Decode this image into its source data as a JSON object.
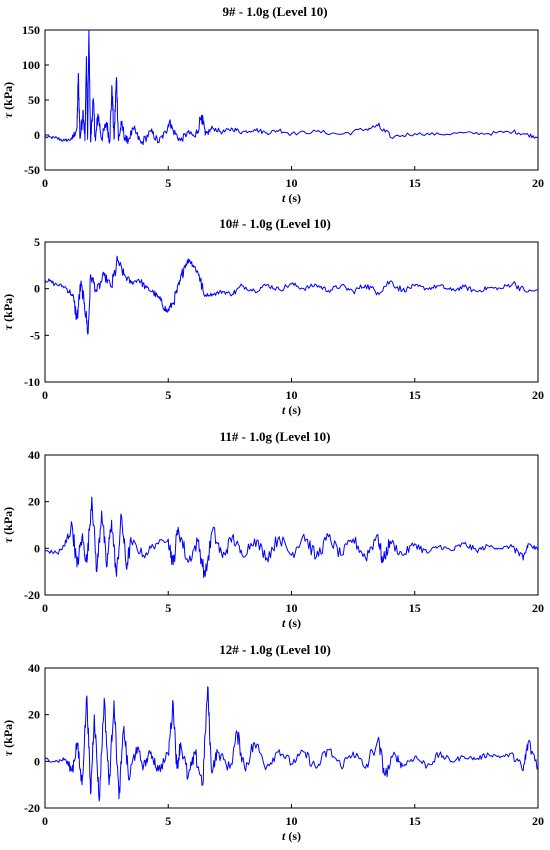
{
  "colors": {
    "series": "#0000ff",
    "axis": "#000000",
    "background": "#ffffff"
  },
  "axis_labels": {
    "y_symbol": "τ",
    "y_unit": " (kPa)",
    "x_symbol": "t",
    "x_unit": " (s)"
  },
  "chart_data": [
    {
      "type": "line",
      "title": "9# - 1.0g (Level 10)",
      "xlabel": "t (s)",
      "ylabel": "τ (kPa)",
      "xlim": [
        0,
        20
      ],
      "ylim": [
        -50,
        150
      ],
      "xticks": [
        0,
        5,
        10,
        15,
        20
      ],
      "yticks": [
        -50,
        0,
        50,
        100,
        150
      ],
      "grid": false,
      "series": [
        {
          "points": [
            [
              0,
              -3
            ],
            [
              0.4,
              -4
            ],
            [
              0.8,
              -8
            ],
            [
              1.1,
              -6
            ],
            [
              1.3,
              10
            ],
            [
              1.35,
              88
            ],
            [
              1.42,
              -5
            ],
            [
              1.55,
              35
            ],
            [
              1.62,
              -8
            ],
            [
              1.68,
              112
            ],
            [
              1.73,
              -6
            ],
            [
              1.78,
              150
            ],
            [
              1.85,
              -10
            ],
            [
              1.95,
              50
            ],
            [
              2.05,
              -8
            ],
            [
              2.15,
              30
            ],
            [
              2.3,
              -5
            ],
            [
              2.5,
              18
            ],
            [
              2.62,
              -8
            ],
            [
              2.72,
              68
            ],
            [
              2.8,
              -6
            ],
            [
              2.9,
              82
            ],
            [
              2.98,
              -8
            ],
            [
              3.1,
              15
            ],
            [
              3.3,
              -10
            ],
            [
              3.6,
              8
            ],
            [
              3.9,
              -12
            ],
            [
              4.3,
              5
            ],
            [
              4.6,
              -10
            ],
            [
              4.9,
              4
            ],
            [
              5.05,
              20
            ],
            [
              5.2,
              6
            ],
            [
              5.5,
              -8
            ],
            [
              5.8,
              4
            ],
            [
              6.1,
              -3
            ],
            [
              6.35,
              28
            ],
            [
              6.5,
              0
            ],
            [
              6.8,
              10
            ],
            [
              7.2,
              4
            ],
            [
              7.6,
              9
            ],
            [
              8,
              4
            ],
            [
              8.5,
              8
            ],
            [
              9,
              3
            ],
            [
              9.5,
              7
            ],
            [
              10,
              2
            ],
            [
              11,
              5
            ],
            [
              12,
              1
            ],
            [
              13,
              8
            ],
            [
              13.5,
              13
            ],
            [
              14,
              -3
            ],
            [
              15,
              2
            ],
            [
              16,
              1
            ],
            [
              17,
              3
            ],
            [
              18,
              2
            ],
            [
              19,
              5
            ],
            [
              19.5,
              1
            ],
            [
              20,
              -3
            ]
          ]
        }
      ]
    },
    {
      "type": "line",
      "title": "10# - 1.0g (Level 10)",
      "xlabel": "t (s)",
      "ylabel": "τ (kPa)",
      "xlim": [
        0,
        20
      ],
      "ylim": [
        -10,
        5
      ],
      "xticks": [
        0,
        5,
        10,
        15,
        20
      ],
      "yticks": [
        -10,
        -5,
        0,
        5
      ],
      "grid": false,
      "series": [
        {
          "points": [
            [
              0,
              1
            ],
            [
              0.4,
              0.5
            ],
            [
              0.8,
              0.2
            ],
            [
              1.1,
              -0.6
            ],
            [
              1.3,
              -3.2
            ],
            [
              1.45,
              0.5
            ],
            [
              1.6,
              -1.5
            ],
            [
              1.75,
              -4.8
            ],
            [
              1.85,
              1.5
            ],
            [
              2.1,
              -0.3
            ],
            [
              2.4,
              1.4
            ],
            [
              2.7,
              0.2
            ],
            [
              2.95,
              3
            ],
            [
              3.2,
              1.5
            ],
            [
              3.5,
              0.6
            ],
            [
              3.8,
              1
            ],
            [
              4.1,
              0.1
            ],
            [
              4.4,
              -0.4
            ],
            [
              4.7,
              -1.3
            ],
            [
              4.95,
              -2.5
            ],
            [
              5.2,
              -1.5
            ],
            [
              5.45,
              0.4
            ],
            [
              5.65,
              2.4
            ],
            [
              5.85,
              3.1
            ],
            [
              6.05,
              2.4
            ],
            [
              6.25,
              1.5
            ],
            [
              6.45,
              -0.7
            ],
            [
              6.8,
              -0.6
            ],
            [
              7.2,
              -0.3
            ],
            [
              7.6,
              -0.6
            ],
            [
              8,
              0.3
            ],
            [
              8.5,
              -0.2
            ],
            [
              9,
              0.4
            ],
            [
              9.5,
              -0.1
            ],
            [
              10,
              0.5
            ],
            [
              10.5,
              0
            ],
            [
              11,
              0.4
            ],
            [
              11.5,
              -0.2
            ],
            [
              12,
              0.3
            ],
            [
              12.5,
              -0.3
            ],
            [
              13,
              0.4
            ],
            [
              13.5,
              -0.4
            ],
            [
              14,
              0.8
            ],
            [
              14.5,
              -0.2
            ],
            [
              15,
              0.3
            ],
            [
              15.5,
              0
            ],
            [
              16,
              0.3
            ],
            [
              16.5,
              -0.2
            ],
            [
              17,
              0.2
            ],
            [
              17.5,
              -0.3
            ],
            [
              18,
              0.1
            ],
            [
              18.5,
              0
            ],
            [
              19,
              0.6
            ],
            [
              19.5,
              -0.3
            ],
            [
              20,
              -0.2
            ]
          ]
        }
      ]
    },
    {
      "type": "line",
      "title": "11# - 1.0g (Level 10)",
      "xlabel": "t (s)",
      "ylabel": "τ (kPa)",
      "xlim": [
        0,
        20
      ],
      "ylim": [
        -20,
        40
      ],
      "xticks": [
        0,
        5,
        10,
        15,
        20
      ],
      "yticks": [
        -20,
        0,
        20,
        40
      ],
      "grid": false,
      "series": [
        {
          "points": [
            [
              0,
              -1
            ],
            [
              0.5,
              -2
            ],
            [
              0.8,
              1
            ],
            [
              1.1,
              10
            ],
            [
              1.3,
              -8
            ],
            [
              1.5,
              5
            ],
            [
              1.7,
              -6
            ],
            [
              1.9,
              22
            ],
            [
              2.1,
              -10
            ],
            [
              2.3,
              16
            ],
            [
              2.5,
              -8
            ],
            [
              2.7,
              12
            ],
            [
              2.9,
              -12
            ],
            [
              3.1,
              14
            ],
            [
              3.3,
              -8
            ],
            [
              3.5,
              3
            ],
            [
              4,
              -3
            ],
            [
              4.5,
              2
            ],
            [
              5,
              4
            ],
            [
              5.2,
              -7
            ],
            [
              5.4,
              9
            ],
            [
              5.8,
              -6
            ],
            [
              6.2,
              3
            ],
            [
              6.5,
              -12
            ],
            [
              6.8,
              8
            ],
            [
              7.2,
              -4
            ],
            [
              7.6,
              5
            ],
            [
              8,
              -3
            ],
            [
              8.5,
              4
            ],
            [
              9,
              -4
            ],
            [
              9.5,
              5
            ],
            [
              10,
              -3
            ],
            [
              10.5,
              6
            ],
            [
              11,
              -4
            ],
            [
              11.5,
              5
            ],
            [
              12,
              -3
            ],
            [
              12.5,
              4
            ],
            [
              13,
              -4
            ],
            [
              13.5,
              6
            ],
            [
              13.7,
              -6
            ],
            [
              14,
              3
            ],
            [
              14.5,
              -3
            ],
            [
              15,
              2
            ],
            [
              15.5,
              -2
            ],
            [
              16,
              1
            ],
            [
              16.5,
              -1
            ],
            [
              17,
              2
            ],
            [
              17.5,
              -1
            ],
            [
              18,
              1
            ],
            [
              18.5,
              0
            ],
            [
              19,
              1
            ],
            [
              19.4,
              -5
            ],
            [
              19.6,
              2
            ],
            [
              20,
              -1
            ]
          ]
        }
      ]
    },
    {
      "type": "line",
      "title": "12# - 1.0g (Level 10)",
      "xlabel": "t (s)",
      "ylabel": "τ (kPa)",
      "xlim": [
        0,
        20
      ],
      "ylim": [
        -20,
        40
      ],
      "xticks": [
        0,
        5,
        10,
        15,
        20
      ],
      "yticks": [
        -20,
        0,
        20,
        40
      ],
      "grid": false,
      "series": [
        {
          "points": [
            [
              0,
              1
            ],
            [
              0.5,
              0
            ],
            [
              0.8,
              1
            ],
            [
              1.1,
              -4
            ],
            [
              1.3,
              8
            ],
            [
              1.5,
              -10
            ],
            [
              1.7,
              28
            ],
            [
              1.85,
              -14
            ],
            [
              2.0,
              20
            ],
            [
              2.2,
              -17
            ],
            [
              2.4,
              27
            ],
            [
              2.6,
              -10
            ],
            [
              2.8,
              26
            ],
            [
              3.0,
              -16
            ],
            [
              3.2,
              15
            ],
            [
              3.4,
              -8
            ],
            [
              3.7,
              6
            ],
            [
              4,
              -2
            ],
            [
              4.3,
              4
            ],
            [
              4.6,
              -4
            ],
            [
              5,
              3
            ],
            [
              5.2,
              25
            ],
            [
              5.35,
              -3
            ],
            [
              5.5,
              8
            ],
            [
              5.8,
              -7
            ],
            [
              6.1,
              3
            ],
            [
              6.4,
              -10
            ],
            [
              6.6,
              32
            ],
            [
              6.75,
              -4
            ],
            [
              7,
              4
            ],
            [
              7.5,
              -3
            ],
            [
              7.8,
              12
            ],
            [
              8.1,
              -3
            ],
            [
              8.5,
              8
            ],
            [
              9,
              -2
            ],
            [
              9.5,
              5
            ],
            [
              10,
              -1
            ],
            [
              10.5,
              4
            ],
            [
              11,
              -3
            ],
            [
              11.5,
              5
            ],
            [
              12,
              -2
            ],
            [
              12.5,
              4
            ],
            [
              13,
              -3
            ],
            [
              13.5,
              9
            ],
            [
              13.8,
              -6
            ],
            [
              14.2,
              3
            ],
            [
              14.5,
              -2
            ],
            [
              15,
              2
            ],
            [
              15.5,
              -2
            ],
            [
              16,
              3
            ],
            [
              16.5,
              0
            ],
            [
              17,
              2
            ],
            [
              17.5,
              1
            ],
            [
              18,
              3
            ],
            [
              18.5,
              2
            ],
            [
              19,
              3
            ],
            [
              19.4,
              -4
            ],
            [
              19.6,
              8
            ],
            [
              20,
              -2
            ]
          ]
        }
      ]
    }
  ]
}
